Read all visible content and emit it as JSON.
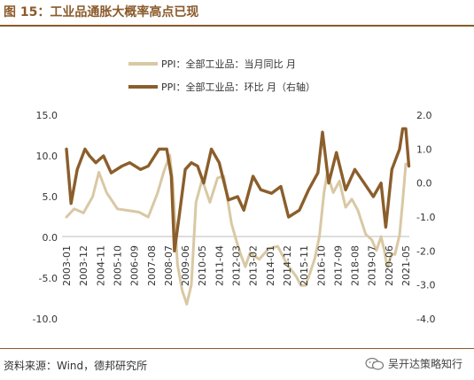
{
  "header": {
    "title": "图 15：工业品通胀大概率高点已现"
  },
  "footer": {
    "source": "资料来源：Wind，德邦研究所",
    "watermark": "吴开达策略知行"
  },
  "icons": {
    "watermark": "wechat-icon"
  },
  "colors": {
    "series_yoy": "#d9c8a4",
    "series_mom": "#8b5e2b",
    "title": "#8a5a2b"
  },
  "chart_data": {
    "type": "line",
    "title": "",
    "x_tick_labels": [
      "2003-01",
      "2003-12",
      "2004-11",
      "2005-10",
      "2006-09",
      "2007-08",
      "2008-07",
      "2009-06",
      "2010-05",
      "2011-04",
      "2012-03",
      "2013-02",
      "2014-01",
      "2014-12",
      "2015-11",
      "2016-10",
      "2017-09",
      "2018-08",
      "2019-07",
      "2020-06",
      "2021-05"
    ],
    "y_left": {
      "ticks": [
        "15.0",
        "10.0",
        "5.0",
        "0.0",
        "-5.0",
        "-10.0"
      ],
      "range": [
        -10,
        15
      ]
    },
    "y_right": {
      "ticks": [
        "2.0",
        "1.0",
        "0.0",
        "-1.0",
        "-2.0",
        "-3.0",
        "-4.0"
      ],
      "range": [
        -4,
        2
      ]
    },
    "legend_position": "top-center",
    "series": [
      {
        "name": "PPI：全部工业品：当月同比  月",
        "axis": "left",
        "x": [
          "2003-01",
          "2003-06",
          "2003-12",
          "2004-06",
          "2004-10",
          "2005-03",
          "2005-10",
          "2006-05",
          "2006-12",
          "2007-06",
          "2007-12",
          "2008-04",
          "2008-08",
          "2008-10",
          "2009-01",
          "2009-04",
          "2009-07",
          "2009-10",
          "2010-01",
          "2010-05",
          "2010-10",
          "2011-03",
          "2011-07",
          "2011-12",
          "2012-03",
          "2012-06",
          "2012-09",
          "2012-12",
          "2013-06",
          "2013-12",
          "2014-06",
          "2014-12",
          "2015-06",
          "2015-09",
          "2015-12",
          "2016-03",
          "2016-06",
          "2016-09",
          "2016-12",
          "2017-02",
          "2017-06",
          "2017-10",
          "2018-02",
          "2018-06",
          "2018-10",
          "2019-03",
          "2019-07",
          "2019-10",
          "2020-01",
          "2020-03",
          "2020-05",
          "2020-08",
          "2020-10",
          "2021-01",
          "2021-03",
          "2021-05",
          "2021-07"
        ],
        "values": [
          2.5,
          3.5,
          3.0,
          5.0,
          8.0,
          5.5,
          3.5,
          3.3,
          3.1,
          2.5,
          5.4,
          8.0,
          10.1,
          6.6,
          -3.3,
          -6.5,
          -8.2,
          -5.8,
          4.3,
          7.1,
          4.3,
          7.3,
          7.5,
          1.7,
          -0.3,
          -2.1,
          -3.6,
          -1.9,
          -2.7,
          -1.4,
          -1.1,
          -3.3,
          -4.8,
          -5.9,
          -5.9,
          -4.3,
          -2.6,
          0.1,
          5.5,
          7.8,
          5.5,
          6.9,
          3.7,
          4.7,
          3.3,
          0.4,
          -0.3,
          -1.6,
          0.1,
          -1.5,
          -3.7,
          -2.0,
          -2.1,
          0.3,
          4.4,
          9.0,
          9.0
        ]
      },
      {
        "name": "PPI：全部工业品：环比  月（右轴）",
        "axis": "right",
        "x": [
          "2003-01",
          "2003-04",
          "2003-08",
          "2004-01",
          "2004-04",
          "2004-08",
          "2005-01",
          "2005-06",
          "2006-01",
          "2006-06",
          "2007-01",
          "2007-06",
          "2008-01",
          "2008-06",
          "2008-09",
          "2008-11",
          "2009-02",
          "2009-06",
          "2009-10",
          "2010-02",
          "2010-06",
          "2010-11",
          "2011-04",
          "2011-10",
          "2012-04",
          "2012-08",
          "2013-02",
          "2013-07",
          "2014-02",
          "2014-08",
          "2015-01",
          "2015-08",
          "2016-02",
          "2016-08",
          "2016-11",
          "2017-03",
          "2017-08",
          "2018-02",
          "2018-08",
          "2019-02",
          "2019-08",
          "2020-01",
          "2020-04",
          "2020-08",
          "2021-01",
          "2021-03",
          "2021-05",
          "2021-07"
        ],
        "values": [
          1.0,
          -0.6,
          0.4,
          1.0,
          0.8,
          0.6,
          0.8,
          0.3,
          0.5,
          0.6,
          0.4,
          0.5,
          1.0,
          1.0,
          0.2,
          -2.0,
          -1.0,
          0.4,
          0.6,
          0.5,
          0.0,
          1.0,
          0.6,
          -0.5,
          -0.4,
          -0.8,
          0.2,
          -0.2,
          -0.3,
          -0.1,
          -1.0,
          -0.8,
          -0.2,
          0.3,
          1.5,
          0.0,
          0.9,
          -0.2,
          0.4,
          0.0,
          -0.4,
          0.0,
          -1.3,
          0.4,
          1.0,
          1.6,
          1.6,
          0.5
        ]
      }
    ]
  }
}
